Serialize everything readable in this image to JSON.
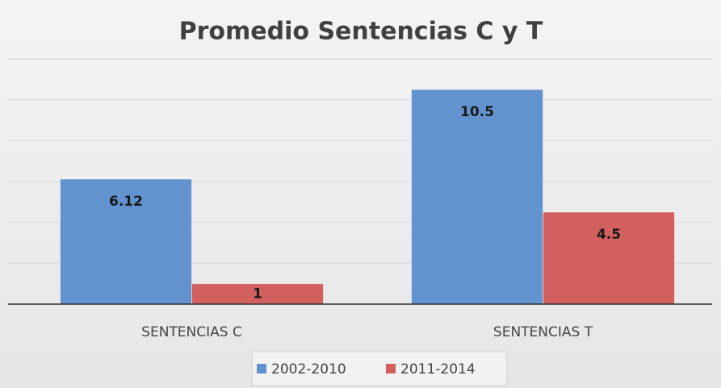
{
  "chart_data": {
    "type": "bar",
    "title": "Promedio Sentencias C y T",
    "categories": [
      "SENTENCIAS C",
      "SENTENCIAS T"
    ],
    "series": [
      {
        "name": "2002-2010",
        "color": "#6393cf",
        "values": [
          6.12,
          10.5
        ]
      },
      {
        "name": "2011-2014",
        "color": "#d2605f",
        "values": [
          1,
          4.5
        ]
      }
    ],
    "ylim": [
      0,
      12
    ],
    "yticks": [
      0,
      2,
      4,
      6,
      8,
      10,
      12
    ],
    "grid": true,
    "legend": "bottom"
  }
}
